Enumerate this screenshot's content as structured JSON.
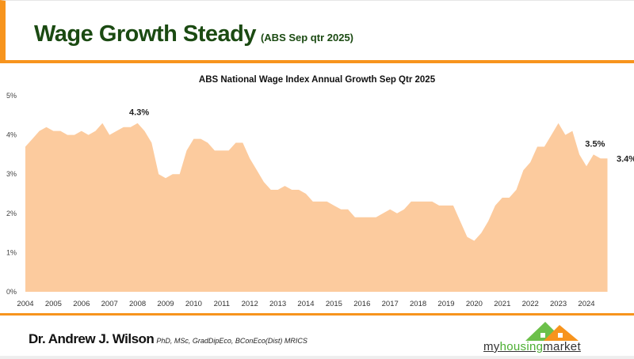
{
  "header": {
    "title": "Wage Growth Steady",
    "subtitle": "(ABS Sep qtr 2025)"
  },
  "footer": {
    "author": "Dr. Andrew J. Wilson",
    "credentials": "PhD, MSc, GradDipEco, BConEco(Dist) MRICS",
    "logo_text_1": "my",
    "logo_text_2": "housing",
    "logo_text_3": "market"
  },
  "colors": {
    "accent": "#f7941d",
    "title": "#1b4a12",
    "area": "#fccb9e"
  },
  "chart_data": {
    "type": "area",
    "title": "ABS National Wage Index Annual Growth Sep Qtr 2025",
    "xlabel": "",
    "ylabel": "",
    "xlim": [
      2004,
      2024.75
    ],
    "ylim": [
      0,
      5
    ],
    "yticks": [
      "0%",
      "1%",
      "2%",
      "3%",
      "4%",
      "5%"
    ],
    "xticks": [
      "2004",
      "2005",
      "2006",
      "2007",
      "2008",
      "2009",
      "2010",
      "2011",
      "2012",
      "2013",
      "2014",
      "2015",
      "2016",
      "2017",
      "2018",
      "2019",
      "2020",
      "2021",
      "2022",
      "2023",
      "2024"
    ],
    "grid": false,
    "x_start": 2004,
    "x_step": 0.25,
    "values": [
      3.7,
      3.9,
      4.1,
      4.2,
      4.1,
      4.1,
      4.0,
      4.0,
      4.1,
      4.0,
      4.1,
      4.3,
      4.0,
      4.1,
      4.2,
      4.2,
      4.3,
      4.1,
      3.8,
      3.0,
      2.9,
      3.0,
      3.0,
      3.6,
      3.9,
      3.9,
      3.8,
      3.6,
      3.6,
      3.6,
      3.8,
      3.8,
      3.4,
      3.1,
      2.8,
      2.6,
      2.6,
      2.7,
      2.6,
      2.6,
      2.5,
      2.3,
      2.3,
      2.3,
      2.2,
      2.1,
      2.1,
      1.9,
      1.9,
      1.9,
      1.9,
      2.0,
      2.1,
      2.0,
      2.1,
      2.3,
      2.3,
      2.3,
      2.3,
      2.2,
      2.2,
      2.2,
      1.8,
      1.4,
      1.3,
      1.5,
      1.8,
      2.2,
      2.4,
      2.4,
      2.6,
      3.1,
      3.3,
      3.7,
      3.7,
      4.0,
      4.3,
      4.0,
      4.1,
      3.5,
      3.2,
      3.5,
      3.4,
      3.4
    ],
    "annotations": [
      {
        "x": 2008.0,
        "y": 4.3,
        "text": "4.3%"
      },
      {
        "x": 2024.25,
        "y": 3.5,
        "text": "3.5%"
      },
      {
        "x": 2024.75,
        "y": 3.4,
        "text": "3.4%"
      }
    ]
  }
}
